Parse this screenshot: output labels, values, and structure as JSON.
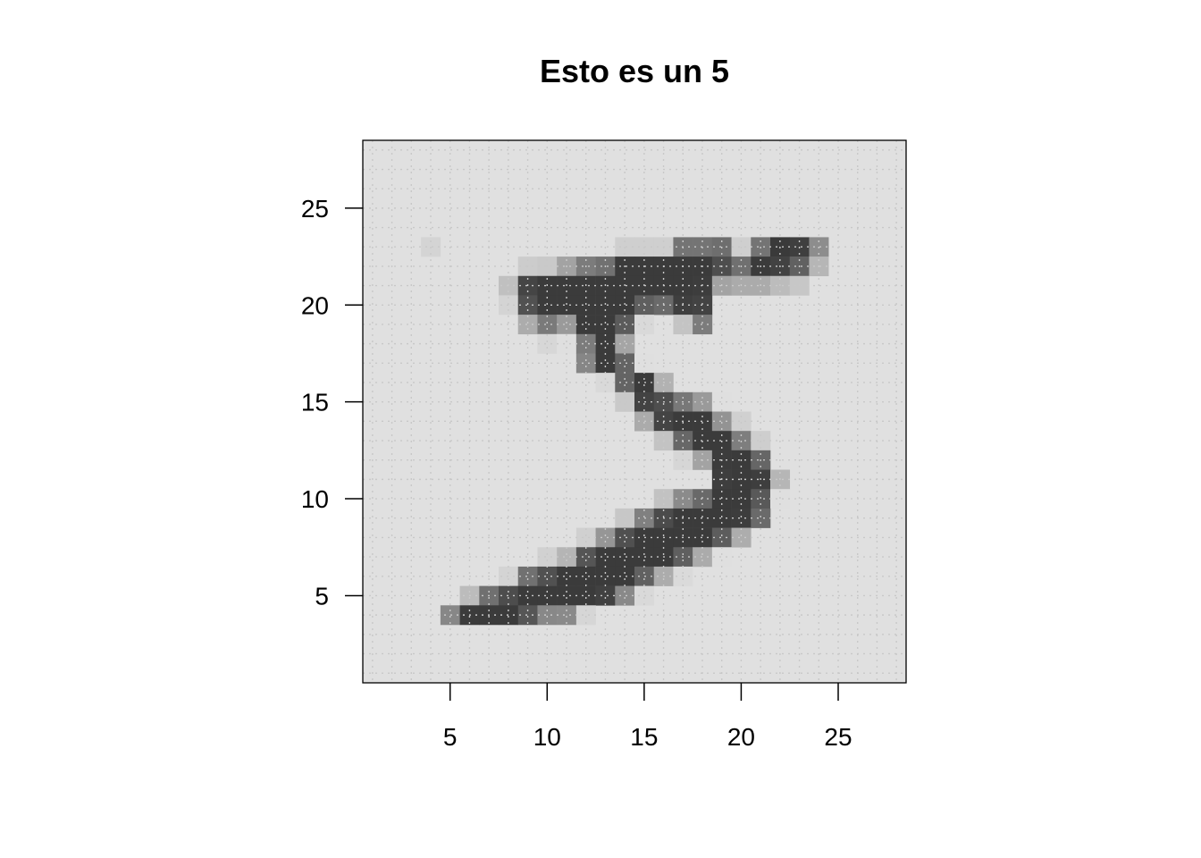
{
  "chart_data": {
    "type": "heatmap",
    "title": "Esto es un 5",
    "xlabel": "",
    "ylabel": "",
    "xlim": [
      0.5,
      28.5
    ],
    "ylim": [
      0.5,
      28.5
    ],
    "x_ticks": [
      5,
      10,
      15,
      20,
      25
    ],
    "y_ticks": [
      5,
      10,
      15,
      20,
      25
    ],
    "grid": true,
    "grid_style": "dotted",
    "color_scale": {
      "low": "#e0e0e0",
      "high": "#3a3a3a",
      "min": 0,
      "max": 255
    },
    "background_value": 0,
    "cells": [
      [
        4,
        23,
        18
      ],
      [
        14,
        23,
        26
      ],
      [
        15,
        23,
        26
      ],
      [
        16,
        23,
        26
      ],
      [
        17,
        23,
        166
      ],
      [
        18,
        23,
        166
      ],
      [
        19,
        23,
        175
      ],
      [
        20,
        23,
        26
      ],
      [
        21,
        23,
        166
      ],
      [
        22,
        23,
        255
      ],
      [
        23,
        23,
        247
      ],
      [
        24,
        23,
        127
      ],
      [
        9,
        22,
        30
      ],
      [
        10,
        22,
        36
      ],
      [
        11,
        22,
        94
      ],
      [
        12,
        22,
        154
      ],
      [
        13,
        22,
        170
      ],
      [
        14,
        22,
        253
      ],
      [
        15,
        22,
        253
      ],
      [
        16,
        22,
        253
      ],
      [
        17,
        22,
        253
      ],
      [
        18,
        22,
        253
      ],
      [
        19,
        22,
        225
      ],
      [
        20,
        22,
        172
      ],
      [
        21,
        22,
        253
      ],
      [
        22,
        22,
        242
      ],
      [
        23,
        22,
        195
      ],
      [
        24,
        22,
        64
      ],
      [
        8,
        21,
        49
      ],
      [
        9,
        21,
        238
      ],
      [
        10,
        21,
        253
      ],
      [
        11,
        21,
        253
      ],
      [
        12,
        21,
        253
      ],
      [
        13,
        21,
        253
      ],
      [
        14,
        21,
        253
      ],
      [
        15,
        21,
        253
      ],
      [
        16,
        21,
        253
      ],
      [
        17,
        21,
        253
      ],
      [
        18,
        21,
        251
      ],
      [
        19,
        21,
        93
      ],
      [
        20,
        21,
        82
      ],
      [
        21,
        21,
        82
      ],
      [
        22,
        21,
        56
      ],
      [
        23,
        21,
        39
      ],
      [
        8,
        20,
        18
      ],
      [
        9,
        20,
        219
      ],
      [
        10,
        20,
        253
      ],
      [
        11,
        20,
        253
      ],
      [
        12,
        20,
        253
      ],
      [
        13,
        20,
        253
      ],
      [
        14,
        20,
        253
      ],
      [
        15,
        20,
        198
      ],
      [
        16,
        20,
        182
      ],
      [
        17,
        20,
        247
      ],
      [
        18,
        20,
        241
      ],
      [
        9,
        19,
        80
      ],
      [
        10,
        19,
        156
      ],
      [
        11,
        19,
        107
      ],
      [
        12,
        19,
        253
      ],
      [
        13,
        19,
        253
      ],
      [
        14,
        19,
        205
      ],
      [
        15,
        19,
        11
      ],
      [
        17,
        19,
        43
      ],
      [
        18,
        19,
        154
      ],
      [
        10,
        18,
        14
      ],
      [
        11,
        18,
        1
      ],
      [
        12,
        18,
        154
      ],
      [
        13,
        18,
        253
      ],
      [
        14,
        18,
        90
      ],
      [
        12,
        17,
        139
      ],
      [
        13,
        17,
        253
      ],
      [
        14,
        17,
        190
      ],
      [
        15,
        17,
        2
      ],
      [
        13,
        16,
        11
      ],
      [
        14,
        16,
        190
      ],
      [
        15,
        16,
        253
      ],
      [
        16,
        16,
        70
      ],
      [
        14,
        15,
        35
      ],
      [
        15,
        15,
        241
      ],
      [
        16,
        15,
        225
      ],
      [
        17,
        15,
        160
      ],
      [
        18,
        15,
        108
      ],
      [
        19,
        15,
        1
      ],
      [
        15,
        14,
        81
      ],
      [
        16,
        14,
        240
      ],
      [
        17,
        14,
        253
      ],
      [
        18,
        14,
        253
      ],
      [
        19,
        14,
        119
      ],
      [
        20,
        14,
        25
      ],
      [
        16,
        13,
        45
      ],
      [
        17,
        13,
        186
      ],
      [
        18,
        13,
        253
      ],
      [
        19,
        13,
        253
      ],
      [
        20,
        13,
        150
      ],
      [
        21,
        13,
        27
      ],
      [
        17,
        12,
        16
      ],
      [
        18,
        12,
        93
      ],
      [
        19,
        12,
        252
      ],
      [
        20,
        12,
        253
      ],
      [
        21,
        12,
        187
      ],
      [
        19,
        11,
        249
      ],
      [
        20,
        11,
        253
      ],
      [
        21,
        11,
        249
      ],
      [
        22,
        11,
        64
      ],
      [
        16,
        10,
        46
      ],
      [
        17,
        10,
        130
      ],
      [
        18,
        10,
        183
      ],
      [
        19,
        10,
        253
      ],
      [
        20,
        10,
        253
      ],
      [
        21,
        10,
        207
      ],
      [
        22,
        10,
        2
      ],
      [
        14,
        9,
        39
      ],
      [
        15,
        9,
        148
      ],
      [
        16,
        9,
        229
      ],
      [
        17,
        9,
        253
      ],
      [
        18,
        9,
        253
      ],
      [
        19,
        9,
        253
      ],
      [
        20,
        9,
        250
      ],
      [
        21,
        9,
        182
      ],
      [
        12,
        8,
        24
      ],
      [
        13,
        8,
        114
      ],
      [
        14,
        8,
        221
      ],
      [
        15,
        8,
        253
      ],
      [
        16,
        8,
        253
      ],
      [
        17,
        8,
        253
      ],
      [
        18,
        8,
        253
      ],
      [
        19,
        8,
        201
      ],
      [
        20,
        8,
        78
      ],
      [
        10,
        7,
        23
      ],
      [
        11,
        7,
        66
      ],
      [
        12,
        7,
        213
      ],
      [
        13,
        7,
        253
      ],
      [
        14,
        7,
        253
      ],
      [
        15,
        7,
        253
      ],
      [
        16,
        7,
        253
      ],
      [
        17,
        7,
        198
      ],
      [
        18,
        7,
        81
      ],
      [
        19,
        7,
        2
      ],
      [
        8,
        6,
        18
      ],
      [
        9,
        6,
        171
      ],
      [
        10,
        6,
        219
      ],
      [
        11,
        6,
        253
      ],
      [
        12,
        6,
        253
      ],
      [
        13,
        6,
        253
      ],
      [
        14,
        6,
        253
      ],
      [
        15,
        6,
        195
      ],
      [
        16,
        6,
        80
      ],
      [
        17,
        6,
        9
      ],
      [
        6,
        5,
        55
      ],
      [
        7,
        5,
        172
      ],
      [
        8,
        5,
        226
      ],
      [
        9,
        5,
        253
      ],
      [
        10,
        5,
        253
      ],
      [
        11,
        5,
        253
      ],
      [
        12,
        5,
        253
      ],
      [
        13,
        5,
        244
      ],
      [
        14,
        5,
        133
      ],
      [
        15,
        5,
        11
      ],
      [
        5,
        4,
        136
      ],
      [
        6,
        4,
        253
      ],
      [
        7,
        4,
        253
      ],
      [
        8,
        4,
        253
      ],
      [
        9,
        4,
        212
      ],
      [
        10,
        4,
        135
      ],
      [
        11,
        4,
        132
      ],
      [
        12,
        4,
        16
      ]
    ]
  }
}
